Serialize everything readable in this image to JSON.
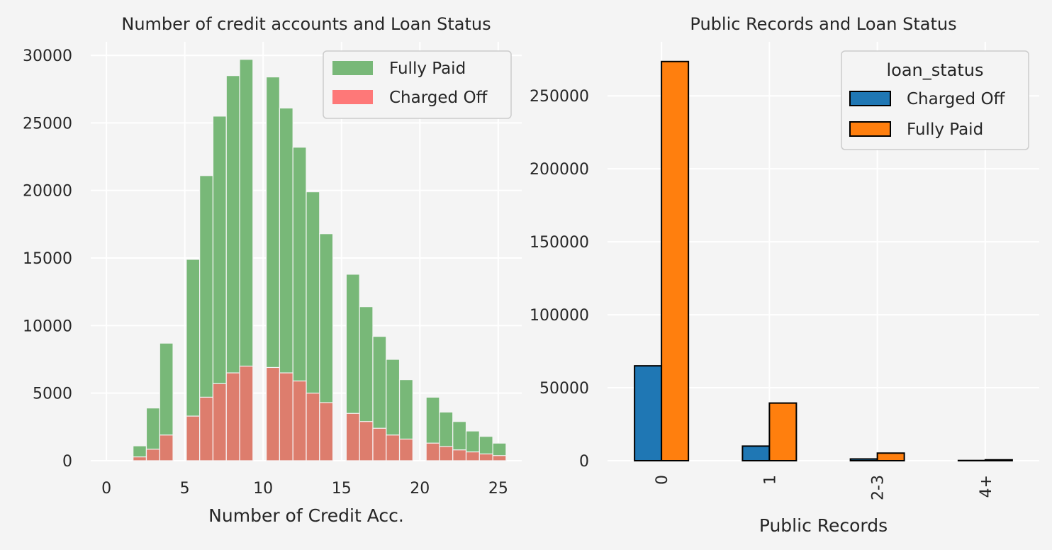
{
  "chart_data": [
    {
      "type": "bar",
      "title": "Number of credit accounts and Loan Status",
      "xlabel": "Number of Credit Acc.",
      "ylabel": "",
      "xlim": [
        -1,
        26.5
      ],
      "ylim": [
        0,
        31000
      ],
      "xticks": [
        "0",
        "5",
        "10",
        "15",
        "20",
        "25"
      ],
      "yticks": [
        "0",
        "5000",
        "10000",
        "15000",
        "20000",
        "25000",
        "30000"
      ],
      "bin_width": 0.85,
      "grid": true,
      "legend_position": "top-right",
      "series": [
        {
          "name": "Fully Paid",
          "color": "#78b878",
          "points": [
            {
              "x": 1.7,
              "y": 1100
            },
            {
              "x": 2.55,
              "y": 3900
            },
            {
              "x": 3.4,
              "y": 8700
            },
            {
              "x": 5.1,
              "y": 14900
            },
            {
              "x": 5.95,
              "y": 21100
            },
            {
              "x": 6.8,
              "y": 25500
            },
            {
              "x": 7.65,
              "y": 28500
            },
            {
              "x": 8.5,
              "y": 29700
            },
            {
              "x": 10.2,
              "y": 28400
            },
            {
              "x": 11.05,
              "y": 26100
            },
            {
              "x": 11.9,
              "y": 23200
            },
            {
              "x": 12.75,
              "y": 19900
            },
            {
              "x": 13.6,
              "y": 16800
            },
            {
              "x": 15.3,
              "y": 13800
            },
            {
              "x": 16.15,
              "y": 11400
            },
            {
              "x": 17.0,
              "y": 9200
            },
            {
              "x": 17.85,
              "y": 7500
            },
            {
              "x": 18.7,
              "y": 6000
            },
            {
              "x": 20.4,
              "y": 4700
            },
            {
              "x": 21.25,
              "y": 3600
            },
            {
              "x": 22.1,
              "y": 2900
            },
            {
              "x": 22.95,
              "y": 2200
            },
            {
              "x": 23.8,
              "y": 1800
            },
            {
              "x": 24.65,
              "y": 1300
            }
          ]
        },
        {
          "name": "Charged Off",
          "color": "#ff6a6a",
          "points": [
            {
              "x": 1.7,
              "y": 280
            },
            {
              "x": 2.55,
              "y": 850
            },
            {
              "x": 3.4,
              "y": 1900
            },
            {
              "x": 5.1,
              "y": 3300
            },
            {
              "x": 5.95,
              "y": 4700
            },
            {
              "x": 6.8,
              "y": 5700
            },
            {
              "x": 7.65,
              "y": 6500
            },
            {
              "x": 8.5,
              "y": 7000
            },
            {
              "x": 10.2,
              "y": 6900
            },
            {
              "x": 11.05,
              "y": 6500
            },
            {
              "x": 11.9,
              "y": 5900
            },
            {
              "x": 12.75,
              "y": 5000
            },
            {
              "x": 13.6,
              "y": 4300
            },
            {
              "x": 15.3,
              "y": 3500
            },
            {
              "x": 16.15,
              "y": 2900
            },
            {
              "x": 17.0,
              "y": 2400
            },
            {
              "x": 17.85,
              "y": 1900
            },
            {
              "x": 18.7,
              "y": 1600
            },
            {
              "x": 20.4,
              "y": 1300
            },
            {
              "x": 21.25,
              "y": 1050
            },
            {
              "x": 22.1,
              "y": 800
            },
            {
              "x": 22.95,
              "y": 650
            },
            {
              "x": 23.8,
              "y": 500
            },
            {
              "x": 24.65,
              "y": 380
            }
          ]
        }
      ]
    },
    {
      "type": "bar",
      "title": "Public Records and Loan Status",
      "xlabel": "Public Records",
      "ylabel": "",
      "categories": [
        "0",
        "1",
        "2-3",
        "4+"
      ],
      "ylim": [
        0,
        287000
      ],
      "yticks": [
        "0",
        "50000",
        "100000",
        "150000",
        "200000",
        "250000"
      ],
      "grid": true,
      "legend_title": "loan_status",
      "legend_position": "top-right",
      "series": [
        {
          "name": "Charged Off",
          "color": "#1f77b4",
          "values": [
            65000,
            10000,
            1200,
            150
          ]
        },
        {
          "name": "Fully Paid",
          "color": "#ff7f0e",
          "values": [
            273500,
            39500,
            5200,
            600
          ]
        }
      ]
    }
  ]
}
